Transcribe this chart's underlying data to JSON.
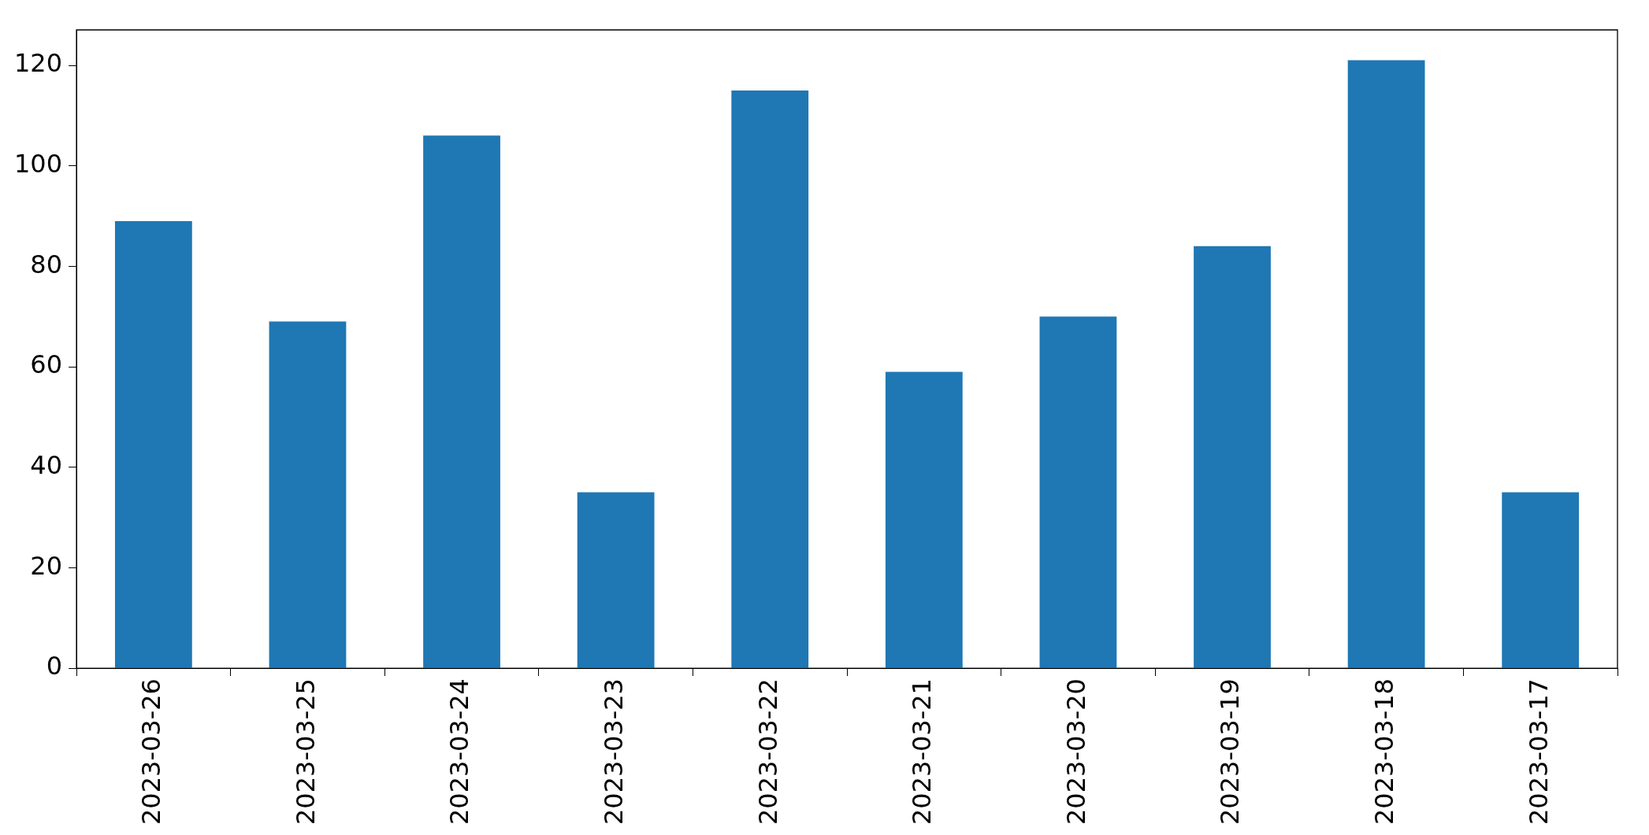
{
  "chart_data": {
    "type": "bar",
    "categories": [
      "2023-03-26",
      "2023-03-25",
      "2023-03-24",
      "2023-03-23",
      "2023-03-22",
      "2023-03-21",
      "2023-03-20",
      "2023-03-19",
      "2023-03-18",
      "2023-03-17"
    ],
    "values": [
      89,
      69,
      106,
      35,
      115,
      59,
      70,
      84,
      121,
      35
    ],
    "color": "#1f77b4",
    "ylim": [
      0,
      127.05
    ],
    "yticks": [
      0,
      20,
      40,
      60,
      80,
      100,
      120
    ],
    "grid": false,
    "legend": false
  }
}
